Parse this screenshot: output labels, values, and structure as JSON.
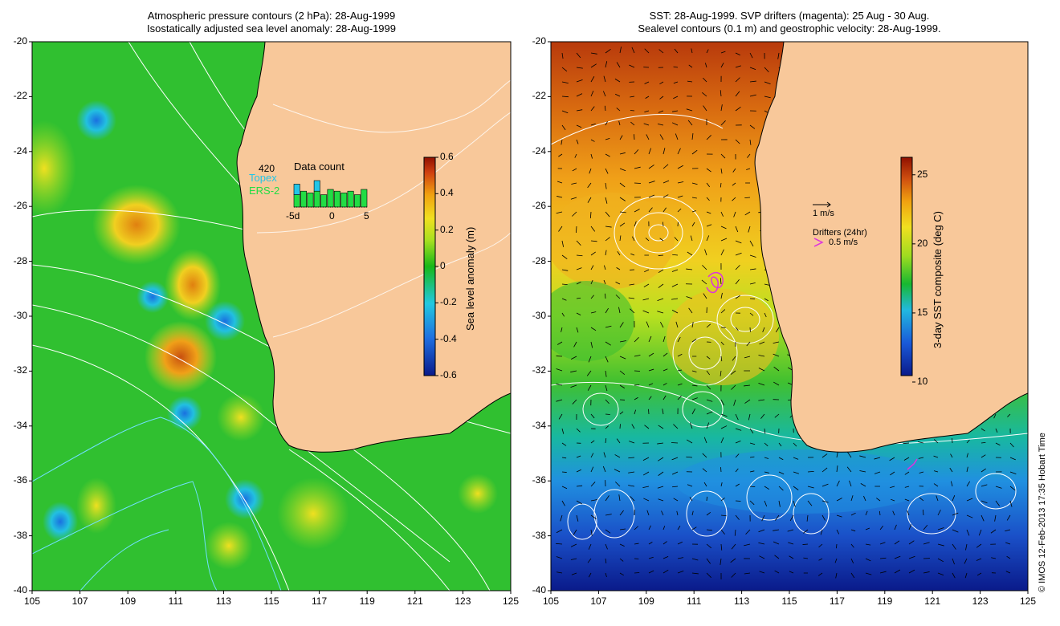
{
  "left_panel": {
    "title_line1": "Atmospheric pressure contours (2 hPa): 28-Aug-1999",
    "title_line2": "Isostatically adjusted sea level anomaly: 28-Aug-1999",
    "y_ticks": [
      "-20",
      "-22",
      "-24",
      "-26",
      "-28",
      "-30",
      "-32",
      "-34",
      "-36",
      "-38",
      "-40"
    ],
    "x_ticks": [
      "105",
      "107",
      "109",
      "111",
      "113",
      "115",
      "117",
      "119",
      "121",
      "123",
      "125"
    ],
    "colorbar": {
      "label": "Sea level anomaly (m)",
      "ticks": [
        "0.6",
        "0.4",
        "0.2",
        "0",
        "-0.2",
        "-0.4",
        "-0.6"
      ]
    },
    "inset": {
      "title": "Data count",
      "count": "420",
      "legend_topex": "Topex",
      "legend_ers2": "ERS-2",
      "x_ticks": [
        "-5d",
        "0",
        "5"
      ],
      "ers2_bars": [
        0.35,
        0.45,
        0.4,
        0.45,
        0.35,
        0.5,
        0.45,
        0.4,
        0.45,
        0.35,
        0.5
      ],
      "topex_bars": [
        0.65,
        0.0,
        0.0,
        0.75,
        0.0,
        0.0,
        0.0,
        0.0,
        0.0,
        0.0,
        0.0
      ],
      "colors": {
        "topex": "#22c5e8",
        "ers2": "#22dd44"
      }
    }
  },
  "right_panel": {
    "title_line1": "SST: 28-Aug-1999. SVP drifters (magenta): 25 Aug - 30 Aug.",
    "title_line2": "Sealevel contours (0.1 m) and geostrophic velocity: 28-Aug-1999.",
    "y_ticks": [
      "-20",
      "-22",
      "-24",
      "-26",
      "-28",
      "-30",
      "-32",
      "-34",
      "-36",
      "-38",
      "-40"
    ],
    "x_ticks": [
      "105",
      "107",
      "109",
      "111",
      "113",
      "115",
      "117",
      "119",
      "121",
      "123",
      "125"
    ],
    "colorbar": {
      "label": "3-day SST composite (deg C)",
      "ticks": [
        "25",
        "20",
        "15",
        "10"
      ]
    },
    "scale_label": "1 m/s",
    "drifters_label": "Drifters (24hr)",
    "drifters_speed": "0.5 m/s",
    "colors": {
      "drifter": "#dd33dd"
    }
  },
  "credit": "© IMOS 12-Feb-2013 17:35 Hobart Time",
  "colors": {
    "land": "#f8c89a",
    "coast": "#000000"
  }
}
